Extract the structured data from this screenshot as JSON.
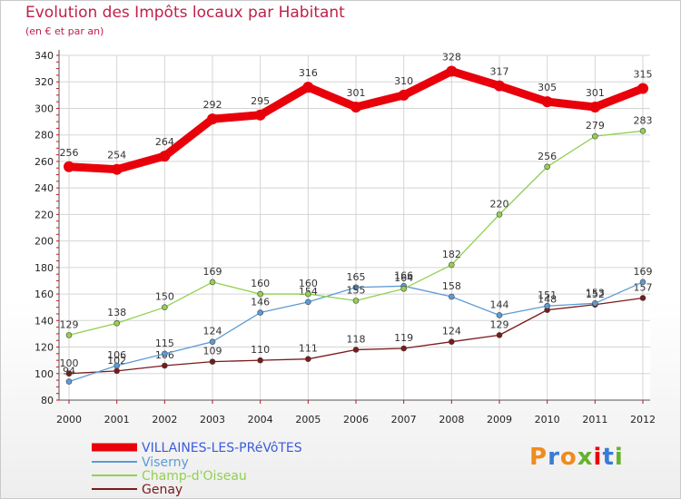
{
  "header": {
    "title": "Evolution des Impôts locaux par Habitant",
    "subtitle": "(en € et par an)"
  },
  "logo": {
    "text": "Proxiti"
  },
  "chart_data": {
    "type": "line",
    "x": [
      2000,
      2001,
      2002,
      2003,
      2004,
      2005,
      2006,
      2007,
      2008,
      2009,
      2010,
      2011,
      2012
    ],
    "ylim": [
      80,
      340
    ],
    "yticks": [
      80,
      100,
      120,
      140,
      160,
      180,
      200,
      220,
      240,
      260,
      280,
      300,
      320,
      340
    ],
    "grid": true,
    "legend": "bottom-left",
    "series": [
      {
        "name": "VILLAINES-LES-PRéVôTES",
        "color": "#e8000b",
        "values": [
          256,
          254,
          264,
          292,
          295,
          316,
          301,
          310,
          328,
          317,
          305,
          301,
          315
        ]
      },
      {
        "name": "Viserny",
        "color": "#5b9bd5",
        "values": [
          94,
          106,
          115,
          124,
          146,
          154,
          165,
          166,
          158,
          144,
          151,
          153,
          169
        ]
      },
      {
        "name": "Champ-d'Oiseau",
        "color": "#92d050",
        "values": [
          129,
          138,
          150,
          169,
          160,
          160,
          155,
          164,
          182,
          220,
          256,
          279,
          283
        ]
      },
      {
        "name": "Genay",
        "color": "#7b1a1a",
        "values": [
          100,
          102,
          106,
          109,
          110,
          111,
          118,
          119,
          124,
          129,
          148,
          152,
          157
        ]
      }
    ]
  }
}
